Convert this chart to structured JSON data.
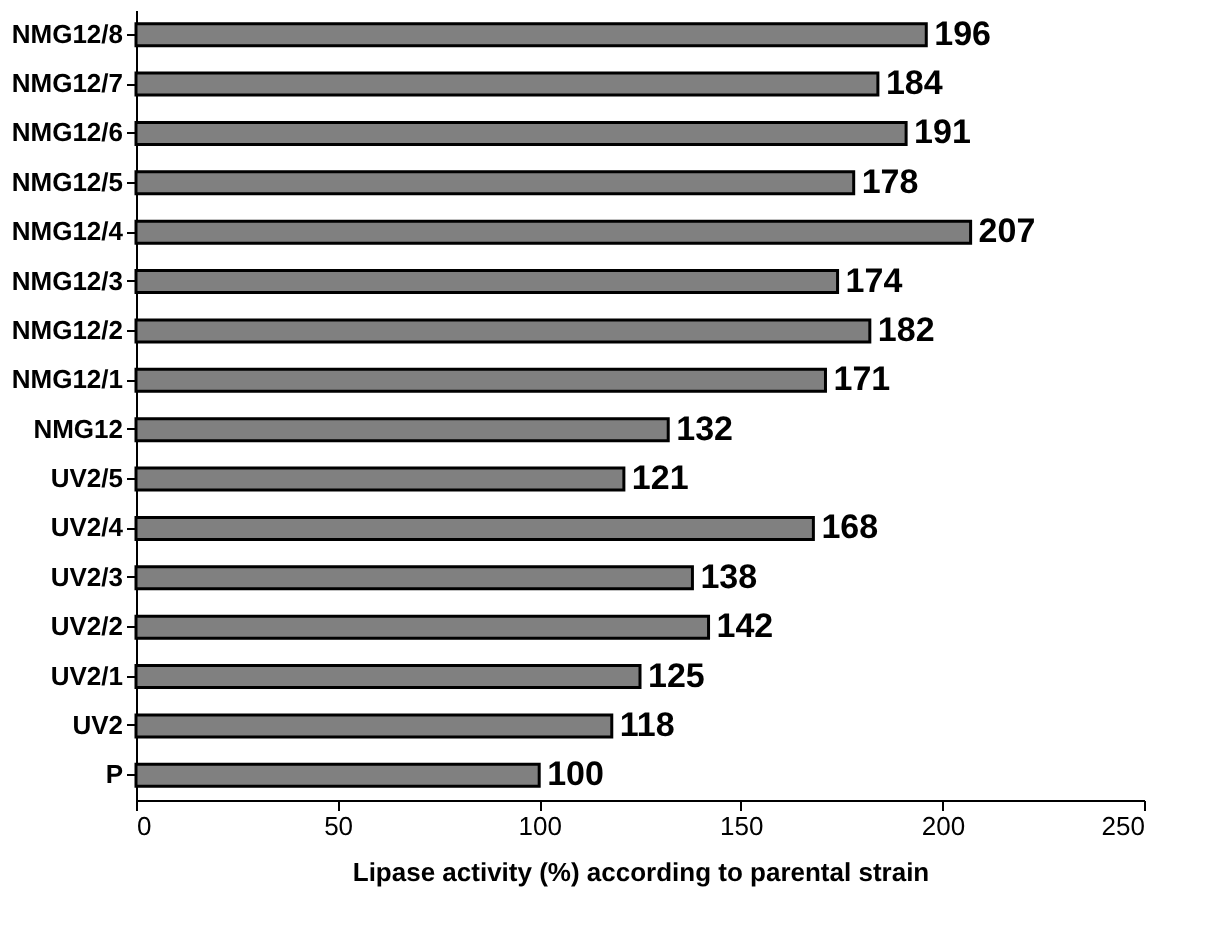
{
  "chart_data": {
    "type": "bar",
    "orientation": "horizontal",
    "xlabel": "Lipase activity (%) according to parental strain",
    "categories": [
      "NMG12/8",
      "NMG12/7",
      "NMG12/6",
      "NMG12/5",
      "NMG12/4",
      "NMG12/3",
      "NMG12/2",
      "NMG12/1",
      "NMG12",
      "UV2/5",
      "UV2/4",
      "UV2/3",
      "UV2/2",
      "UV2/1",
      "UV2",
      "P"
    ],
    "values": [
      196,
      184,
      191,
      178,
      207,
      174,
      182,
      171,
      132,
      121,
      168,
      138,
      142,
      125,
      118,
      100
    ],
    "color": "#808080",
    "xlim": [
      0,
      250
    ],
    "xticks": [
      0,
      50,
      100,
      150,
      200,
      250
    ],
    "data_labels": true,
    "grid": false
  }
}
